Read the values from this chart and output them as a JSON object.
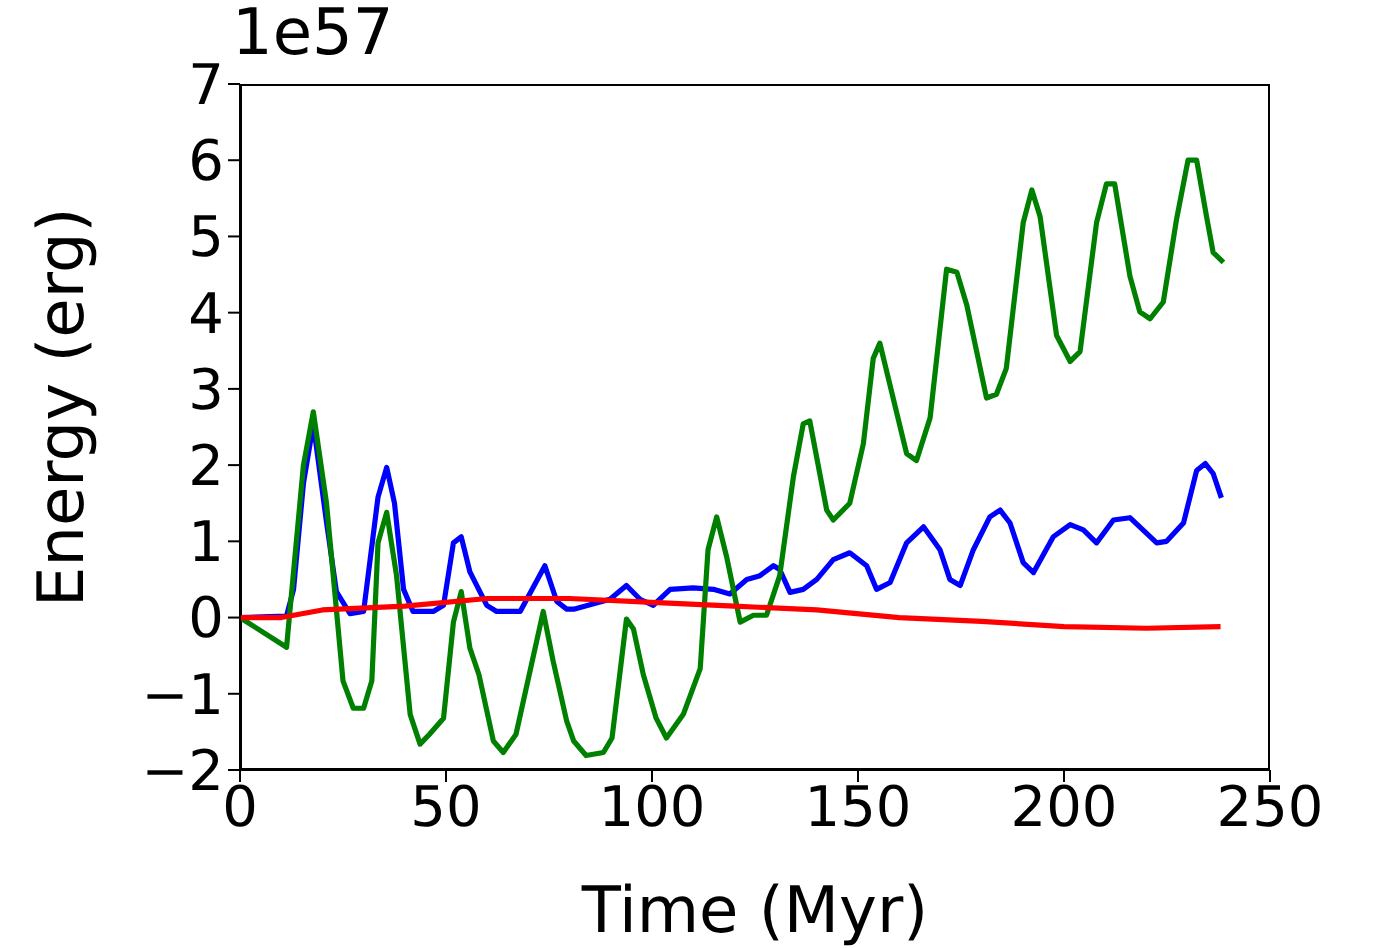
{
  "chart_data": {
    "type": "line",
    "xlabel": "Time (Myr)",
    "ylabel": "Energy (erg)",
    "annotations": [
      "1e57"
    ],
    "xlim": [
      0,
      250
    ],
    "xticks": [
      0,
      50,
      100,
      150,
      200,
      250
    ],
    "ylim": [
      -2,
      7
    ],
    "yticks": [
      -2,
      -1,
      0,
      1,
      2,
      3,
      4,
      5,
      6,
      7
    ],
    "marker": "none",
    "line_style": "solid",
    "series": [
      {
        "color": "#0000ff",
        "x": [
          0,
          11.3,
          13,
          15.4,
          17.8,
          21,
          23.4,
          26.7,
          30,
          33.5,
          35.6,
          37.5,
          39.7,
          42,
          46.9,
          49.4,
          51.8,
          53.7,
          55.8,
          59.9,
          62.3,
          68,
          74,
          76.9,
          79.3,
          81,
          89.8,
          93.8,
          97.1,
          100.3,
          104.4,
          110,
          114.9,
          118.9,
          123,
          126.2,
          129.5,
          131,
          133.5,
          136.7,
          140,
          144,
          148,
          152.1,
          154.5,
          157.8,
          161.8,
          165.9,
          169.9,
          172.3,
          174.8,
          178,
          182,
          184.5,
          186.9,
          190.1,
          192.6,
          197.4,
          201.5,
          204.7,
          207.9,
          212,
          216,
          222.5,
          224.9,
          229,
          232.2,
          234.3,
          236.2,
          238.2
        ],
        "values": [
          0,
          0.02,
          0.37,
          1.76,
          2.54,
          1.25,
          0.34,
          0.05,
          0.08,
          1.58,
          1.97,
          1.5,
          0.37,
          0.08,
          0.08,
          0.16,
          0.98,
          1.06,
          0.6,
          0.16,
          0.08,
          0.08,
          0.68,
          0.21,
          0.11,
          0.11,
          0.24,
          0.42,
          0.24,
          0.16,
          0.37,
          0.39,
          0.37,
          0.31,
          0.5,
          0.55,
          0.68,
          0.63,
          0.33,
          0.37,
          0.5,
          0.76,
          0.85,
          0.68,
          0.37,
          0.46,
          0.98,
          1.19,
          0.89,
          0.5,
          0.42,
          0.89,
          1.32,
          1.41,
          1.24,
          0.72,
          0.59,
          1.06,
          1.22,
          1.15,
          0.98,
          1.28,
          1.31,
          0.98,
          1,
          1.24,
          1.93,
          2.02,
          1.89,
          1.57
        ]
      },
      {
        "color": "#008000",
        "x": [
          0,
          11.3,
          15.4,
          17.8,
          21,
          25,
          27.5,
          30,
          32,
          33.5,
          35.6,
          38,
          41.3,
          43.7,
          46,
          49.4,
          51.8,
          53.7,
          55.8,
          58,
          61.5,
          63.9,
          67,
          73.6,
          76,
          79.3,
          81,
          84,
          88.2,
          90.3,
          93.8,
          95.5,
          97.9,
          101,
          103.5,
          107.6,
          111.7,
          113.6,
          115.7,
          118.1,
          121.4,
          124.6,
          127.8,
          131,
          134.3,
          136.7,
          138.3,
          142.4,
          144,
          148,
          151.3,
          153.7,
          155.3,
          161.8,
          164.2,
          167.5,
          171.5,
          174,
          176.4,
          181.2,
          183.6,
          186,
          190.1,
          192.2,
          194.2,
          198.2,
          201.5,
          203.9,
          207.9,
          210.3,
          212.3,
          216,
          218.4,
          220.9,
          224.1,
          227.3,
          230.1,
          232.2,
          234.6,
          236.2,
          238.7
        ],
        "values": [
          0,
          -0.39,
          2,
          2.7,
          1.5,
          -0.83,
          -1.19,
          -1.19,
          -0.83,
          0.98,
          1.38,
          0.55,
          -1.27,
          -1.66,
          -1.53,
          -1.32,
          -0.06,
          0.34,
          -0.4,
          -0.75,
          -1.62,
          -1.77,
          -1.53,
          0.08,
          -0.57,
          -1.36,
          -1.62,
          -1.81,
          -1.77,
          -1.58,
          -0.02,
          -0.15,
          -0.75,
          -1.32,
          -1.58,
          -1.27,
          -0.67,
          0.89,
          1.32,
          0.8,
          -0.06,
          0.03,
          0.03,
          0.55,
          1.84,
          2.54,
          2.58,
          1.41,
          1.28,
          1.5,
          2.28,
          3.4,
          3.6,
          2.15,
          2.06,
          2.62,
          4.57,
          4.53,
          4.1,
          2.88,
          2.93,
          3.27,
          5.18,
          5.61,
          5.26,
          3.7,
          3.36,
          3.49,
          5.18,
          5.69,
          5.69,
          4.48,
          4.01,
          3.92,
          4.14,
          5.22,
          6,
          6,
          5.26,
          4.79,
          4.66
        ]
      },
      {
        "color": "#ff0000",
        "x": [
          0,
          10,
          20,
          40,
          60,
          80,
          100,
          120,
          140,
          160,
          180,
          200,
          220,
          238
        ],
        "values": [
          0,
          0,
          0.1,
          0.15,
          0.25,
          0.25,
          0.2,
          0.15,
          0.1,
          0,
          -0.05,
          -0.12,
          -0.14,
          -0.12
        ]
      }
    ]
  }
}
